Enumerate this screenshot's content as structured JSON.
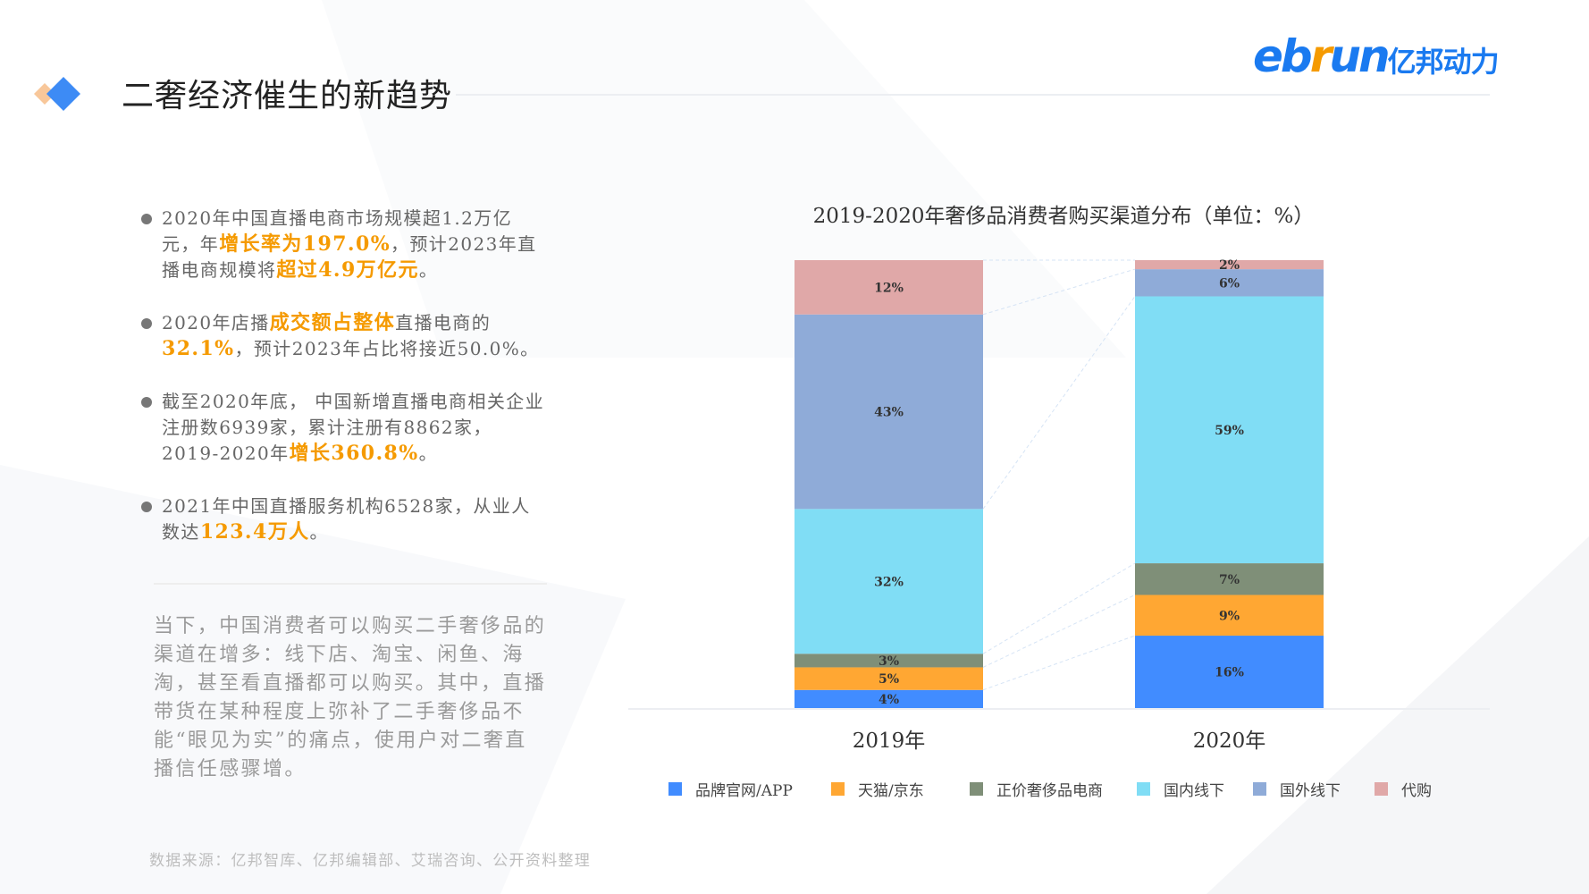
{
  "header": {
    "title": "二奢经济催生的新趋势",
    "logo_en": [
      "eb",
      "r",
      "un"
    ],
    "logo_cn": "亿邦动力",
    "accent_colors": {
      "diamond_orange": "#F8C79A",
      "diamond_blue": "#3D8BF5",
      "logo_blue": "#1A7AF0",
      "logo_orange": "#F59A00"
    }
  },
  "bullets": [
    {
      "parts": [
        {
          "text": "2020年中国直播电商市场规模超1.2万亿元，年"
        },
        {
          "text": "增长率为197.0%",
          "highlight": true
        },
        {
          "text": "，预计2023年直播电商规模将"
        },
        {
          "text": "超过4.9万亿元",
          "highlight": true
        },
        {
          "text": "。"
        }
      ]
    },
    {
      "parts": [
        {
          "text": "2020年店播"
        },
        {
          "text": "成交额占整体",
          "highlight": true
        },
        {
          "text": "直播电商的"
        },
        {
          "text": "32.1%",
          "highlight": true
        },
        {
          "text": "，预计2023年占比将接近50.0%。"
        }
      ]
    },
    {
      "parts": [
        {
          "text": "截至2020年底， 中国新增直播电商相关企业注册数6939家，累计注册有8862家，2019-2020年"
        },
        {
          "text": "增长360.8%",
          "highlight": true
        },
        {
          "text": "。"
        }
      ]
    },
    {
      "parts": [
        {
          "text": "2021年中国直播服务机构6528家，从业人数达"
        },
        {
          "text": "123.4万人",
          "highlight": true
        },
        {
          "text": "。"
        }
      ]
    }
  ],
  "paragraph": "当下，中国消费者可以购买二手奢侈品的渠道在增多：线下店、淘宝、闲鱼、海淘，甚至看直播都可以购买。其中，直播带货在某种程度上弥补了二手奢侈品不能“眼见为实”的痛点，使用户对二奢直播信任感骤增。",
  "source": "数据来源：亿邦智库、亿邦编辑部、艾瑞咨询、公开资料整理",
  "chart_data": {
    "type": "bar",
    "stacked": true,
    "title": "2019-2020年奢侈品消费者购买渠道分布（单位：%）",
    "categories": [
      "2019年",
      "2020年"
    ],
    "series": [
      {
        "name": "品牌官网/APP",
        "values": [
          4,
          16
        ],
        "color": "#418CFF"
      },
      {
        "name": "天猫/京东",
        "values": [
          5,
          9
        ],
        "color": "#FFA733"
      },
      {
        "name": "正价奢侈品电商",
        "values": [
          3,
          7
        ],
        "color": "#7F8F78"
      },
      {
        "name": "国内线下",
        "values": [
          32,
          59
        ],
        "color": "#80DDF5"
      },
      {
        "name": "国外线下",
        "values": [
          43,
          6
        ],
        "color": "#8FABD8"
      },
      {
        "name": "代购",
        "values": [
          12,
          2
        ],
        "color": "#E0A8A8"
      }
    ],
    "data_labels": [
      [
        "4%",
        "5%",
        "3%",
        "32%",
        "43%",
        "12%"
      ],
      [
        "16%",
        "9%",
        "7%",
        "59%",
        "6%",
        "2%"
      ]
    ],
    "legend_position": "bottom",
    "grid": false,
    "connector_lines": true
  }
}
